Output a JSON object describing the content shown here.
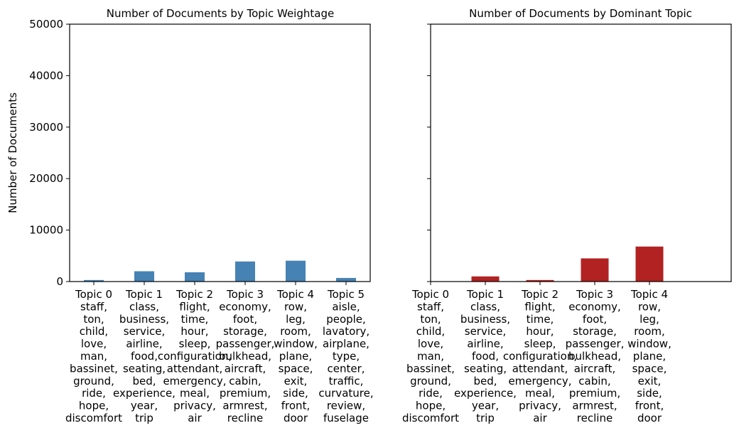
{
  "chart_data": [
    {
      "type": "bar",
      "title": "Number of Documents by Topic Weightage",
      "ylabel": "Number of Documents",
      "xlabel": "",
      "ylim": [
        0,
        50000
      ],
      "yticks": [
        0,
        10000,
        20000,
        30000,
        40000,
        50000
      ],
      "bar_color": "#4682b4",
      "categories": [
        "Topic 0",
        "Topic 1",
        "Topic 2",
        "Topic 3",
        "Topic 4",
        "Topic 5"
      ],
      "category_words": [
        [
          "staff,",
          "ton,",
          "child,",
          "love,",
          "man,",
          "bassinet,",
          "ground,",
          "ride,",
          "hope,",
          "discomfort"
        ],
        [
          "class,",
          "business,",
          "service,",
          "airline,",
          "food,",
          "seating,",
          "bed,",
          "experience,",
          "year,",
          "trip"
        ],
        [
          "flight,",
          "time,",
          "hour,",
          "sleep,",
          "configuration,",
          "attendant,",
          "emergency,",
          "meal,",
          "privacy,",
          "air"
        ],
        [
          "economy,",
          "foot,",
          "storage,",
          "passenger,",
          "bulkhead,",
          "aircraft,",
          "cabin,",
          "premium,",
          "armrest,",
          "recline"
        ],
        [
          "row,",
          "leg,",
          "room,",
          "window,",
          "plane,",
          "space,",
          "exit,",
          "side,",
          "front,",
          "door"
        ],
        [
          "aisle,",
          "people,",
          "lavatory,",
          "airplane,",
          "type,",
          "center,",
          "traffic,",
          "curvature,",
          "review,",
          "fuselage"
        ]
      ],
      "values": [
        300,
        2000,
        1800,
        3900,
        4050,
        700
      ]
    },
    {
      "type": "bar",
      "title": "Number of Documents by Dominant Topic",
      "ylabel": "",
      "xlabel": "",
      "ylim": [
        0,
        50000
      ],
      "bar_color": "#b22222",
      "categories": [
        "Topic 0",
        "Topic 1",
        "Topic 2",
        "Topic 3",
        "Topic 4"
      ],
      "category_words": [
        [
          "staff,",
          "ton,",
          "child,",
          "love,",
          "man,",
          "bassinet,",
          "ground,",
          "ride,",
          "hope,",
          "discomfort"
        ],
        [
          "class,",
          "business,",
          "service,",
          "airline,",
          "food,",
          "seating,",
          "bed,",
          "experience,",
          "year,",
          "trip"
        ],
        [
          "flight,",
          "time,",
          "hour,",
          "sleep,",
          "configuration,",
          "attendant,",
          "emergency,",
          "meal,",
          "privacy,",
          "air"
        ],
        [
          "economy,",
          "foot,",
          "storage,",
          "passenger,",
          "bulkhead,",
          "aircraft,",
          "cabin,",
          "premium,",
          "armrest,",
          "recline"
        ],
        [
          "row,",
          "leg,",
          "room,",
          "window,",
          "plane,",
          "space,",
          "exit,",
          "side,",
          "front,",
          "door"
        ]
      ],
      "values": [
        0,
        1000,
        300,
        4500,
        6800
      ]
    }
  ]
}
